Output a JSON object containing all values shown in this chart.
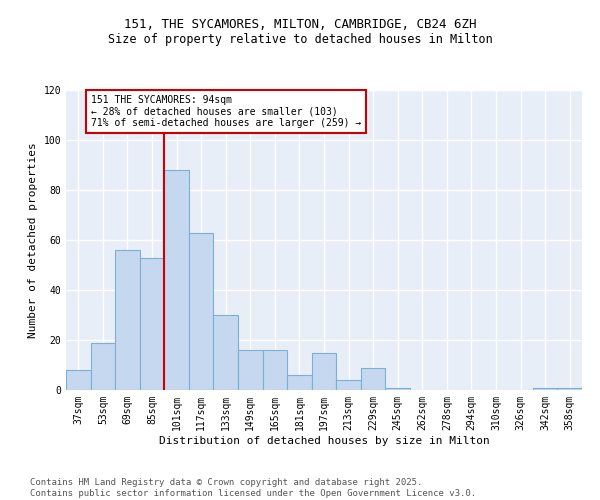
{
  "title1": "151, THE SYCAMORES, MILTON, CAMBRIDGE, CB24 6ZH",
  "title2": "Size of property relative to detached houses in Milton",
  "xlabel": "Distribution of detached houses by size in Milton",
  "ylabel": "Number of detached properties",
  "categories": [
    "37sqm",
    "53sqm",
    "69sqm",
    "85sqm",
    "101sqm",
    "117sqm",
    "133sqm",
    "149sqm",
    "165sqm",
    "181sqm",
    "197sqm",
    "213sqm",
    "229sqm",
    "245sqm",
    "262sqm",
    "278sqm",
    "294sqm",
    "310sqm",
    "326sqm",
    "342sqm",
    "358sqm"
  ],
  "values": [
    8,
    19,
    56,
    53,
    88,
    63,
    30,
    16,
    16,
    6,
    15,
    4,
    9,
    1,
    0,
    0,
    0,
    0,
    0,
    1,
    1
  ],
  "bar_color": "#c5d8f0",
  "bar_edge_color": "#7bafd4",
  "vline_color": "#cc0000",
  "vline_x": 3.5,
  "annotation_text": "151 THE SYCAMORES: 94sqm\n← 28% of detached houses are smaller (103)\n71% of semi-detached houses are larger (259) →",
  "annotation_box_color": "#ffffff",
  "annotation_box_edge": "#cc0000",
  "ylim": [
    0,
    120
  ],
  "yticks": [
    0,
    20,
    40,
    60,
    80,
    100,
    120
  ],
  "background_color": "#e8eef8",
  "grid_color": "#ffffff",
  "footer": "Contains HM Land Registry data © Crown copyright and database right 2025.\nContains public sector information licensed under the Open Government Licence v3.0.",
  "footer_fontsize": 6.5,
  "title1_fontsize": 9,
  "title2_fontsize": 8.5,
  "axis_fontsize": 8,
  "tick_fontsize": 7
}
